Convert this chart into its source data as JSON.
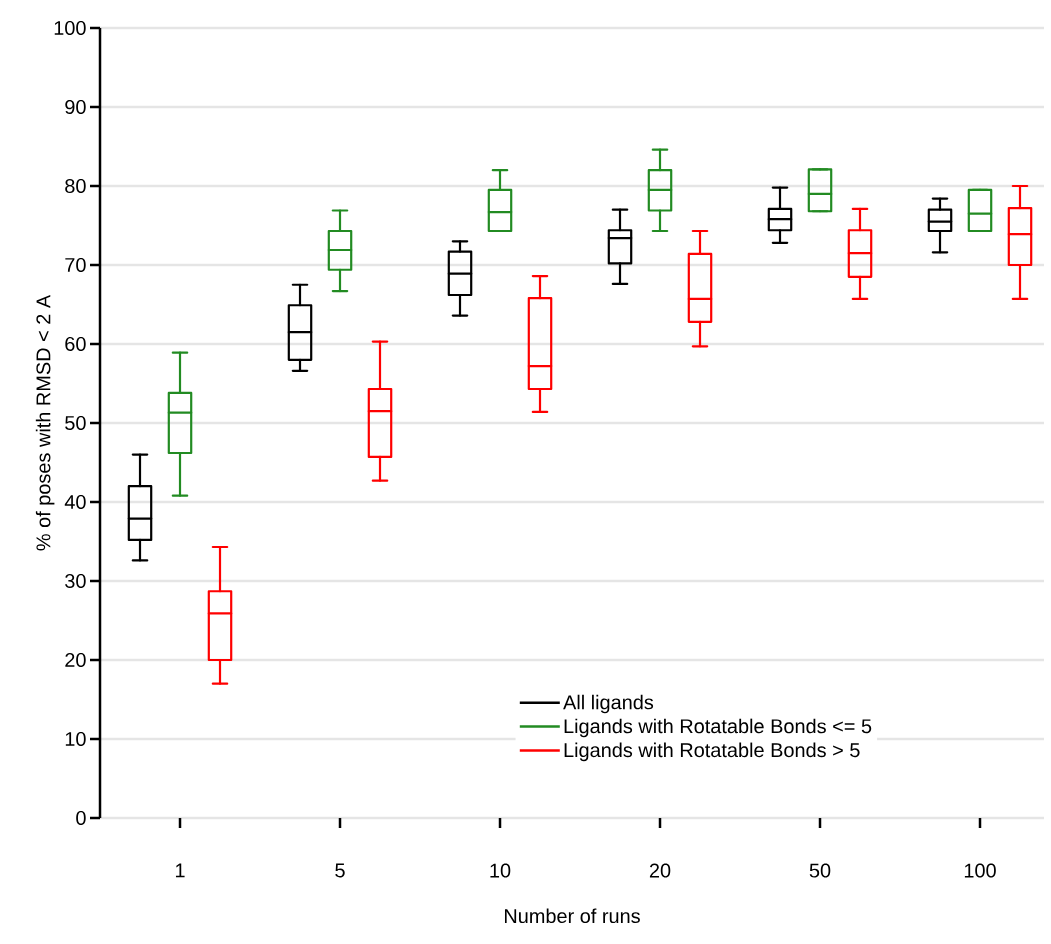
{
  "chart_data": {
    "type": "box",
    "xlabel": "Number of runs",
    "ylabel": "% of poses with RMSD < 2 A",
    "categories": [
      "1",
      "5",
      "10",
      "20",
      "50",
      "100"
    ],
    "ylim": [
      0,
      100
    ],
    "yticks": [
      0,
      10,
      20,
      30,
      40,
      50,
      60,
      70,
      80,
      90,
      100
    ],
    "grid": "y",
    "legend": "bottom right",
    "series": [
      {
        "name": "All ligands",
        "color": "#000000",
        "boxes": [
          {
            "low": 32.6,
            "q1": 35.2,
            "median": 37.9,
            "q3": 42.0,
            "high": 46.0
          },
          {
            "low": 56.6,
            "q1": 58.0,
            "median": 61.5,
            "q3": 64.9,
            "high": 67.5
          },
          {
            "low": 63.6,
            "q1": 66.2,
            "median": 68.9,
            "q3": 71.7,
            "high": 73.0
          },
          {
            "low": 67.6,
            "q1": 70.2,
            "median": 73.4,
            "q3": 74.4,
            "high": 77.0
          },
          {
            "low": 72.8,
            "q1": 74.4,
            "median": 75.8,
            "q3": 77.1,
            "high": 79.8
          },
          {
            "low": 71.6,
            "q1": 74.3,
            "median": 75.5,
            "q3": 77.0,
            "high": 78.4
          }
        ]
      },
      {
        "name": "Ligands with Rotatable Bonds <= 5",
        "color": "#228b22",
        "boxes": [
          {
            "low": 40.8,
            "q1": 46.2,
            "median": 51.3,
            "q3": 53.8,
            "high": 58.9
          },
          {
            "low": 66.7,
            "q1": 69.4,
            "median": 71.9,
            "q3": 74.3,
            "high": 76.9
          },
          {
            "low": 74.3,
            "q1": 74.3,
            "median": 76.7,
            "q3": 79.5,
            "high": 82.0
          },
          {
            "low": 74.3,
            "q1": 76.9,
            "median": 79.5,
            "q3": 82.0,
            "high": 84.6
          },
          {
            "low": 76.8,
            "q1": 76.8,
            "median": 79.0,
            "q3": 82.1,
            "high": 82.1
          },
          {
            "low": 74.3,
            "q1": 74.3,
            "median": 76.5,
            "q3": 79.5,
            "high": 79.5
          }
        ]
      },
      {
        "name": "Ligands with Rotatable Bonds > 5",
        "color": "#ff0000",
        "boxes": [
          {
            "low": 17.0,
            "q1": 20.0,
            "median": 25.9,
            "q3": 28.7,
            "high": 34.3
          },
          {
            "low": 42.7,
            "q1": 45.7,
            "median": 51.5,
            "q3": 54.3,
            "high": 60.3
          },
          {
            "low": 51.4,
            "q1": 54.3,
            "median": 57.2,
            "q3": 65.8,
            "high": 68.6
          },
          {
            "low": 59.7,
            "q1": 62.8,
            "median": 65.7,
            "q3": 71.4,
            "high": 74.3
          },
          {
            "low": 65.7,
            "q1": 68.5,
            "median": 71.5,
            "q3": 74.4,
            "high": 77.1
          },
          {
            "low": 65.7,
            "q1": 70.0,
            "median": 73.9,
            "q3": 77.2,
            "high": 80.0
          }
        ]
      }
    ]
  }
}
